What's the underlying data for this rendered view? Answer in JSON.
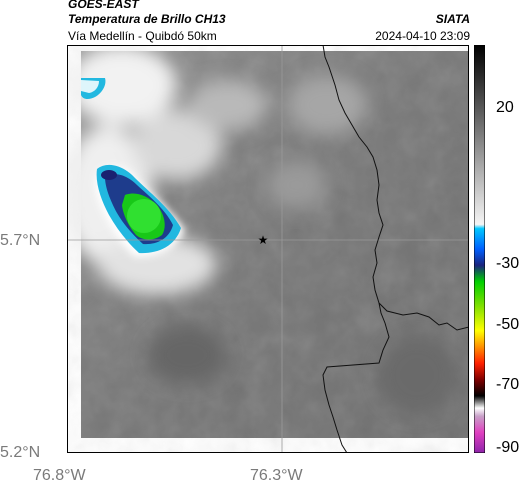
{
  "header": {
    "source": "GOES-EAST",
    "product": "Temperatura de Brillo CH13",
    "region": "Vía Medellín - Quibdó 50km",
    "organization": "SIATA",
    "datetime": "2024-04-10 23:09"
  },
  "map": {
    "x_ticks": [
      "76.8°W",
      "76.3°W"
    ],
    "y_ticks": [
      "5.7°N",
      "5.2°N"
    ],
    "marker": "star-marker",
    "features": [
      "brightness-temperature-field",
      "department-boundary",
      "cold-cloud-core",
      "lat-lon-gridlines"
    ]
  },
  "colorbar": {
    "labels": [
      "20",
      "-30",
      "-50",
      "-70",
      "-90"
    ],
    "ramp": [
      {
        "t": 20,
        "color": "#d9d9d9"
      },
      {
        "t": 10,
        "color": "#f5f5f5"
      },
      {
        "t": -20,
        "color": "#00c8ff"
      },
      {
        "t": -30,
        "color": "#1a237e"
      },
      {
        "t": -40,
        "color": "#00d000"
      },
      {
        "t": -50,
        "color": "#ffff00"
      },
      {
        "t": -60,
        "color": "#ff6000"
      },
      {
        "t": -65,
        "color": "#c00000"
      },
      {
        "t": -70,
        "color": "#000000"
      },
      {
        "t": -80,
        "color": "#ff66cc"
      },
      {
        "t": -90,
        "color": "#8e24aa"
      }
    ]
  }
}
